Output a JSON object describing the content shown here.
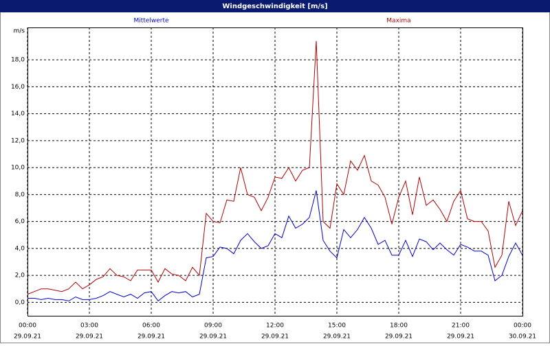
{
  "chart_data": {
    "type": "line",
    "title": "Windgeschwindigkeit [m/s]",
    "y_unit": "m/s",
    "x": [
      0,
      20,
      40,
      60,
      80,
      100,
      120,
      140,
      160,
      180,
      200,
      220,
      240,
      260,
      280,
      300,
      320,
      340,
      360,
      380,
      400,
      420,
      440,
      460,
      480,
      500,
      520,
      540,
      560,
      580,
      600,
      620,
      640,
      660,
      680,
      700,
      720,
      740,
      760,
      780,
      800,
      820,
      840,
      860,
      880,
      900,
      920,
      940,
      960,
      980,
      1000,
      1020,
      1040,
      1060,
      1080,
      1100,
      1120,
      1140,
      1160,
      1180,
      1200,
      1220,
      1240,
      1260,
      1280,
      1300,
      1320,
      1340,
      1360,
      1380,
      1400,
      1420,
      1440
    ],
    "xlim": [
      0,
      1440
    ],
    "xticks": [
      {
        "value": 0,
        "label": "00:00",
        "sublabel": "29.09.21"
      },
      {
        "value": 180,
        "label": "03:00",
        "sublabel": "29.09.21"
      },
      {
        "value": 360,
        "label": "06:00",
        "sublabel": "29.09.21"
      },
      {
        "value": 540,
        "label": "09:00",
        "sublabel": "29.09.21"
      },
      {
        "value": 720,
        "label": "12:00",
        "sublabel": "29.09.21"
      },
      {
        "value": 900,
        "label": "15:00",
        "sublabel": "29.09.21"
      },
      {
        "value": 1080,
        "label": "18:00",
        "sublabel": "29.09.21"
      },
      {
        "value": 1260,
        "label": "21:00",
        "sublabel": "29.09.21"
      },
      {
        "value": 1440,
        "label": "00:00",
        "sublabel": "30.09.21"
      }
    ],
    "ylim": [
      -1,
      20.4
    ],
    "yticks": [
      {
        "value": 0,
        "label": "0,0"
      },
      {
        "value": 2,
        "label": "2,0"
      },
      {
        "value": 4,
        "label": "4,0"
      },
      {
        "value": 6,
        "label": "6,0"
      },
      {
        "value": 8,
        "label": "8,0"
      },
      {
        "value": 10,
        "label": "10,0"
      },
      {
        "value": 12,
        "label": "12,0"
      },
      {
        "value": 14,
        "label": "14,0"
      },
      {
        "value": 16,
        "label": "16,0"
      },
      {
        "value": 18,
        "label": "18,0"
      }
    ],
    "grid": true,
    "series": [
      {
        "name": "Mittelwerte",
        "color": "#0000cc",
        "values": [
          0.3,
          0.3,
          0.2,
          0.3,
          0.2,
          0.2,
          0.1,
          0.4,
          0.2,
          0.2,
          0.3,
          0.5,
          0.8,
          0.6,
          0.4,
          0.6,
          0.3,
          0.7,
          0.8,
          0.1,
          0.5,
          0.8,
          0.7,
          0.8,
          0.4,
          0.6,
          3.3,
          3.4,
          4.1,
          4.0,
          3.6,
          4.6,
          5.1,
          4.5,
          4.0,
          4.2,
          5.1,
          4.8,
          6.4,
          5.5,
          5.8,
          6.3,
          8.3,
          4.6,
          3.8,
          3.3,
          5.4,
          4.8,
          5.4,
          6.3,
          5.5,
          4.3,
          4.6,
          3.5,
          3.5,
          4.6,
          3.4,
          4.7,
          4.5,
          3.9,
          4.4,
          3.9,
          3.5,
          4.3,
          4.1,
          3.8,
          3.8,
          3.5,
          1.6,
          2.0,
          3.4,
          4.4,
          3.5
        ]
      },
      {
        "name": "Maxima",
        "color": "#b00000",
        "values": [
          0.6,
          0.8,
          1.0,
          1.0,
          0.9,
          0.8,
          1.0,
          1.5,
          1.0,
          1.3,
          1.7,
          1.9,
          2.5,
          2.0,
          1.9,
          1.6,
          2.4,
          2.4,
          2.4,
          1.5,
          2.5,
          2.1,
          2.0,
          1.6,
          2.6,
          2.0,
          6.6,
          6.0,
          5.9,
          7.6,
          7.5,
          10.0,
          8.0,
          7.8,
          6.8,
          7.8,
          9.3,
          9.2,
          10.0,
          9.0,
          9.8,
          10.0,
          19.4,
          6.0,
          5.5,
          8.8,
          8.0,
          10.5,
          9.8,
          10.9,
          9.0,
          8.7,
          7.8,
          5.8,
          7.8,
          9.0,
          6.5,
          9.3,
          7.2,
          7.6,
          6.9,
          6.0,
          7.5,
          8.3,
          6.2,
          6.0,
          6.0,
          5.3,
          2.6,
          3.5,
          7.5,
          5.7,
          6.8
        ]
      }
    ]
  }
}
